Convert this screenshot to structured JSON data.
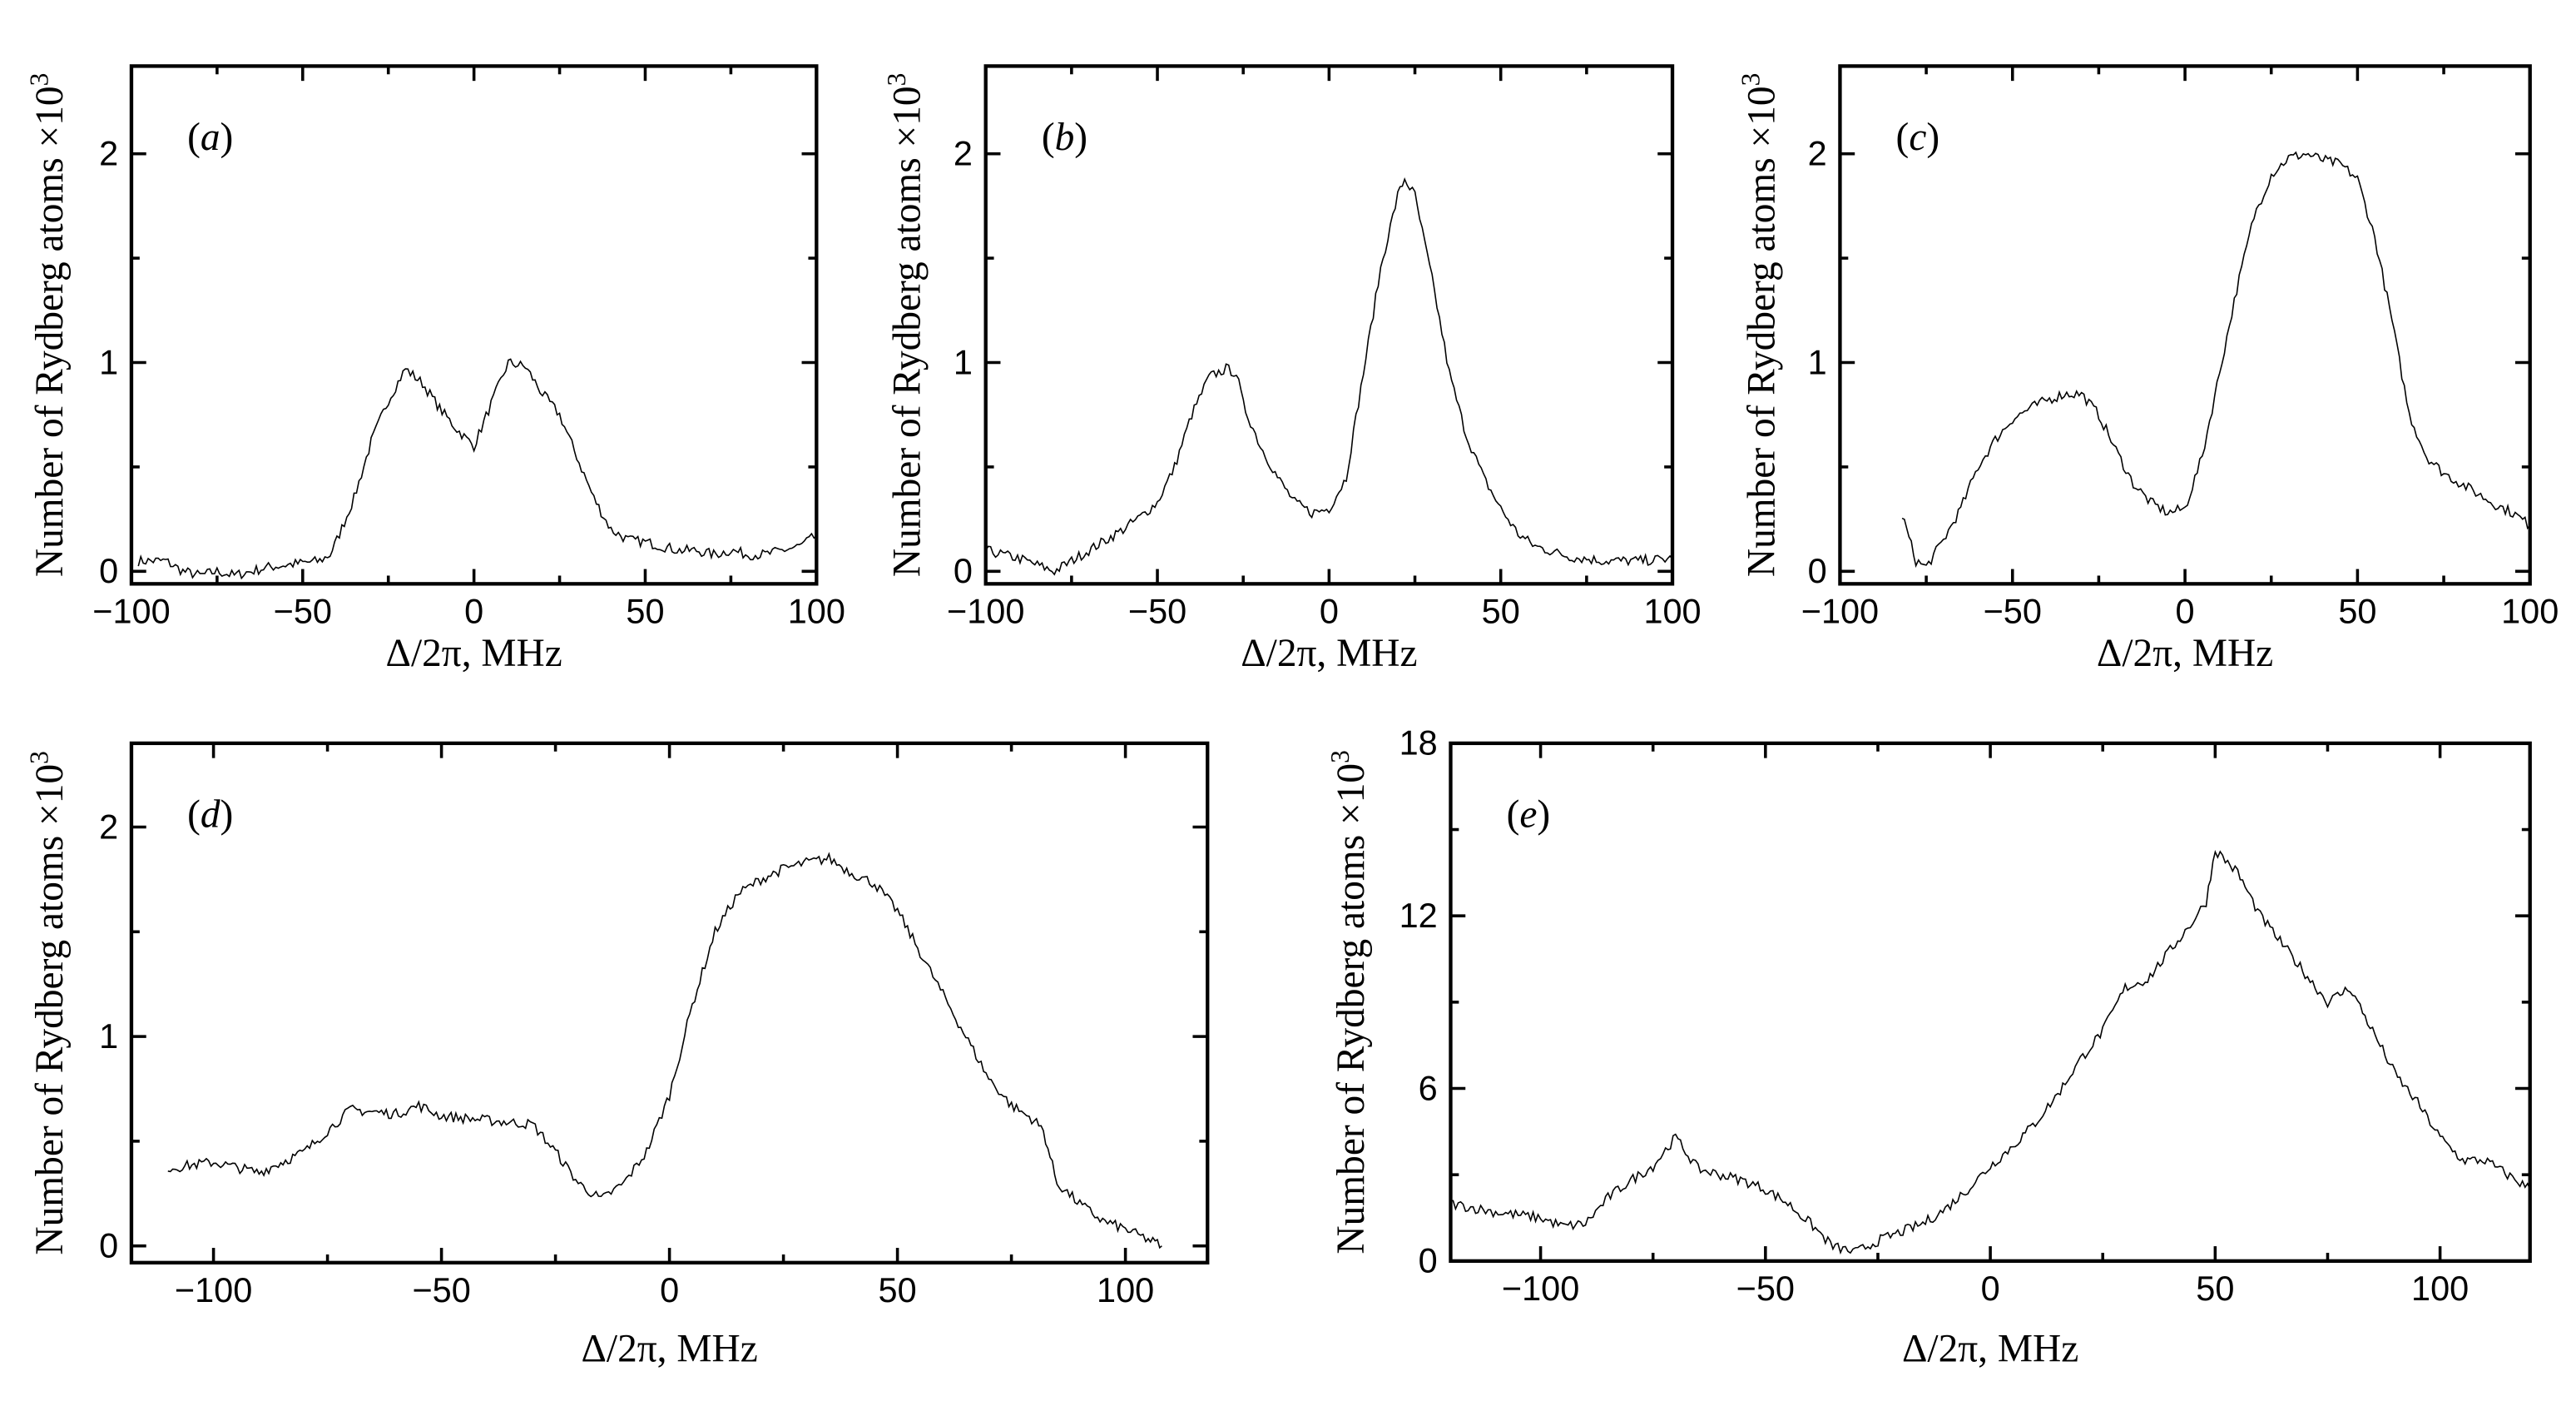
{
  "chart_data": [
    {
      "type": "line",
      "panel_label": "(a)",
      "xlabel": "Δ/2π, MHz",
      "ylabel": "Number of Rydberg atoms ×10³",
      "xlim": [
        -100,
        100
      ],
      "ylim": [
        -0.06,
        2.42
      ],
      "xticks": [
        -100,
        -50,
        0,
        50,
        100
      ],
      "yticks": [
        0,
        1,
        2
      ],
      "grid": false,
      "x": [
        -98,
        -90,
        -85,
        -80,
        -75,
        -70,
        -65,
        -60,
        -55,
        -50,
        -45,
        -42,
        -40,
        -35,
        -30,
        -25,
        -20,
        -15,
        -10,
        -5,
        0,
        5,
        10,
        15,
        20,
        25,
        30,
        35,
        40,
        45,
        50,
        55,
        60,
        65,
        70,
        75,
        80,
        85,
        90,
        95,
        100
      ],
      "y": [
        0.05,
        0.05,
        0.0,
        -0.02,
        0.0,
        -0.02,
        0.0,
        0.02,
        0.03,
        0.04,
        0.05,
        0.08,
        0.15,
        0.35,
        0.62,
        0.82,
        0.97,
        0.9,
        0.78,
        0.68,
        0.6,
        0.8,
        1.0,
        0.98,
        0.85,
        0.75,
        0.55,
        0.35,
        0.2,
        0.15,
        0.14,
        0.12,
        0.1,
        0.1,
        0.08,
        0.1,
        0.08,
        0.08,
        0.1,
        0.12,
        0.17
      ]
    },
    {
      "type": "line",
      "panel_label": "(b)",
      "xlabel": "Δ/2π, MHz",
      "ylabel": "Number of Rydberg atoms ×10³",
      "xlim": [
        -100,
        100
      ],
      "ylim": [
        -0.06,
        2.42
      ],
      "xticks": [
        -100,
        -50,
        0,
        50,
        100
      ],
      "yticks": [
        0,
        1,
        2
      ],
      "grid": false,
      "x": [
        -100,
        -90,
        -80,
        -75,
        -70,
        -60,
        -55,
        -50,
        -45,
        -40,
        -35,
        -30,
        -27,
        -25,
        -20,
        -15,
        -10,
        -5,
        0,
        5,
        10,
        15,
        20,
        22,
        25,
        30,
        35,
        40,
        45,
        50,
        55,
        60,
        70,
        80,
        90,
        100
      ],
      "y": [
        0.1,
        0.06,
        0.0,
        0.05,
        0.1,
        0.2,
        0.26,
        0.33,
        0.5,
        0.75,
        0.93,
        0.97,
        0.95,
        0.8,
        0.6,
        0.45,
        0.33,
        0.28,
        0.3,
        0.45,
        0.95,
        1.45,
        1.8,
        1.88,
        1.8,
        1.4,
        0.95,
        0.65,
        0.45,
        0.3,
        0.18,
        0.12,
        0.07,
        0.05,
        0.05,
        0.06
      ]
    },
    {
      "type": "line",
      "panel_label": "(c)",
      "xlabel": "Δ/2π, MHz",
      "ylabel": "Number of Rydberg atoms ×10³",
      "xlim": [
        -100,
        100
      ],
      "ylim": [
        -0.06,
        2.42
      ],
      "xticks": [
        -100,
        -50,
        0,
        50,
        100
      ],
      "yticks": [
        0,
        1,
        2
      ],
      "grid": false,
      "x": [
        -82,
        -78,
        -75,
        -70,
        -65,
        -60,
        -55,
        -50,
        -45,
        -40,
        -35,
        -30,
        -25,
        -20,
        -15,
        -10,
        -5,
        0,
        5,
        10,
        15,
        20,
        25,
        30,
        35,
        40,
        45,
        50,
        55,
        60,
        65,
        70,
        75,
        80,
        85,
        90,
        95,
        100
      ],
      "y": [
        0.27,
        0.05,
        0.02,
        0.15,
        0.3,
        0.5,
        0.63,
        0.73,
        0.78,
        0.82,
        0.85,
        0.85,
        0.75,
        0.58,
        0.42,
        0.33,
        0.28,
        0.3,
        0.55,
        0.95,
        1.35,
        1.7,
        1.9,
        1.98,
        2.0,
        1.97,
        1.95,
        1.88,
        1.6,
        1.2,
        0.75,
        0.55,
        0.47,
        0.42,
        0.37,
        0.32,
        0.28,
        0.22
      ]
    },
    {
      "type": "line",
      "panel_label": "(d)",
      "xlabel": "Δ/2π, MHz",
      "ylabel": "Number of Rydberg atoms ×10³",
      "xlim": [
        -118,
        118
      ],
      "ylim": [
        -0.08,
        2.4
      ],
      "xticks": [
        -100,
        -50,
        0,
        50,
        100
      ],
      "yticks": [
        0,
        1,
        2
      ],
      "grid": false,
      "x": [
        -110,
        -100,
        -90,
        -80,
        -75,
        -70,
        -60,
        -55,
        -50,
        -40,
        -30,
        -25,
        -20,
        -15,
        -10,
        -5,
        0,
        5,
        10,
        15,
        20,
        25,
        30,
        35,
        40,
        45,
        50,
        55,
        60,
        65,
        70,
        75,
        80,
        82,
        85,
        90,
        95,
        100,
        105,
        108
      ],
      "y": [
        0.37,
        0.4,
        0.35,
        0.45,
        0.55,
        0.65,
        0.63,
        0.67,
        0.62,
        0.6,
        0.58,
        0.45,
        0.3,
        0.22,
        0.3,
        0.45,
        0.72,
        1.15,
        1.5,
        1.68,
        1.75,
        1.8,
        1.83,
        1.85,
        1.78,
        1.73,
        1.6,
        1.4,
        1.2,
        1.0,
        0.8,
        0.67,
        0.6,
        0.55,
        0.3,
        0.2,
        0.12,
        0.08,
        0.03,
        0.0
      ]
    },
    {
      "type": "line",
      "panel_label": "(e)",
      "xlabel": "Δ/2π, MHz",
      "ylabel": "Number of Rydberg atoms ×10³",
      "xlim": [
        -120,
        120
      ],
      "ylim": [
        0,
        18
      ],
      "xticks": [
        -100,
        -50,
        0,
        50,
        100
      ],
      "yticks": [
        0,
        6,
        12,
        18
      ],
      "grid": false,
      "x": [
        -120,
        -110,
        -100,
        -95,
        -90,
        -85,
        -80,
        -75,
        -70,
        -65,
        -60,
        -55,
        -50,
        -45,
        -40,
        -35,
        -30,
        -25,
        -20,
        -15,
        -10,
        -5,
        0,
        5,
        10,
        15,
        20,
        25,
        30,
        35,
        40,
        45,
        48,
        50,
        55,
        60,
        65,
        70,
        75,
        80,
        85,
        90,
        95,
        100,
        105,
        110,
        115,
        120
      ],
      "y": [
        2.0,
        1.7,
        1.5,
        1.2,
        1.3,
        2.2,
        2.8,
        3.3,
        4.3,
        3.2,
        3.0,
        2.8,
        2.5,
        2.0,
        1.3,
        0.5,
        0.3,
        0.7,
        1.0,
        1.3,
        1.8,
        2.5,
        3.3,
        4.0,
        4.8,
        5.8,
        7.0,
        8.0,
        9.5,
        9.8,
        10.8,
        11.8,
        12.5,
        14.3,
        13.5,
        12.0,
        11.0,
        10.0,
        9.0,
        9.5,
        8.0,
        6.5,
        5.5,
        4.3,
        3.5,
        3.5,
        3.0,
        2.5
      ]
    }
  ]
}
